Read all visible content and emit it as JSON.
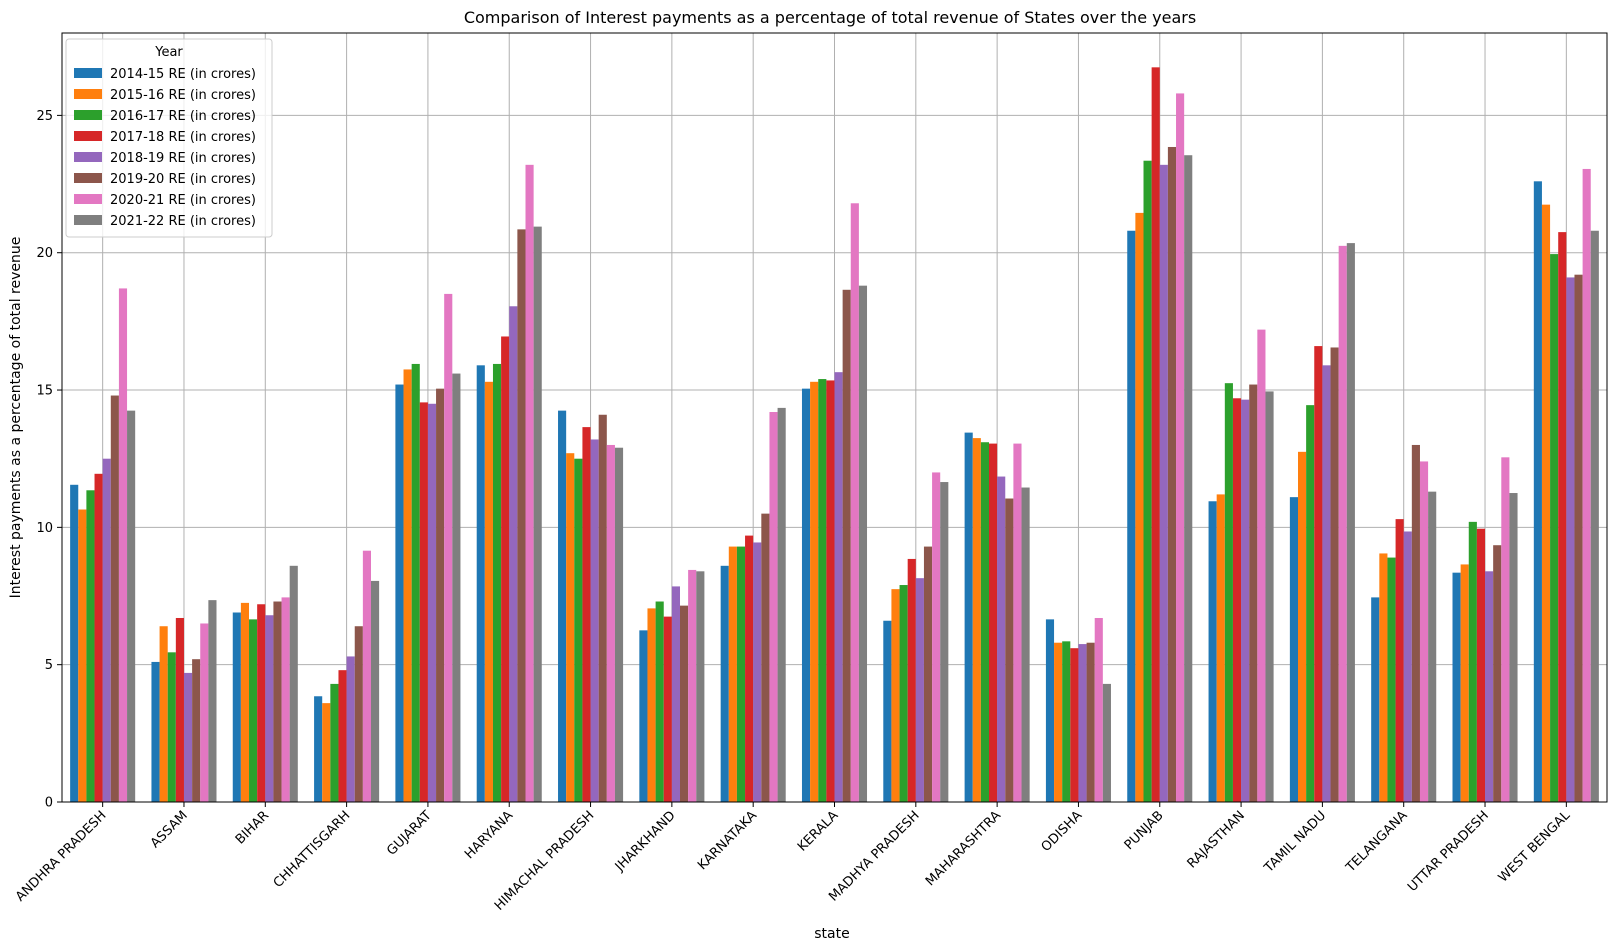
{
  "chart_data": {
    "type": "bar",
    "title": "Comparison of Interest payments as a percentage of total revenue of States over the years",
    "xlabel": "state",
    "ylabel": "Interest payments as a percentage of total revenue",
    "ylim": [
      0,
      28
    ],
    "yticks": [
      0,
      5,
      10,
      15,
      20,
      25
    ],
    "grid": true,
    "legend_title": "Year",
    "legend_position": "top-left",
    "categories": [
      "ANDHRA PRADESH",
      "ASSAM",
      "BIHAR",
      "CHHATTISGARH",
      "GUJARAT",
      "HARYANA",
      "HIMACHAL PRADESH",
      "JHARKHAND",
      "KARNATAKA",
      "KERALA",
      "MADHYA PRADESH",
      "MAHARASHTRA",
      "ODISHA",
      "PUNJAB",
      "RAJASTHAN",
      "TAMIL NADU",
      "TELANGANA",
      "UTTAR PRADESH",
      "WEST BENGAL"
    ],
    "series": [
      {
        "name": "2014-15 RE (in crores)",
        "color": "#1f77b4",
        "values": [
          11.55,
          5.1,
          6.9,
          3.85,
          15.2,
          15.9,
          14.25,
          6.25,
          8.6,
          15.05,
          6.6,
          13.45,
          6.65,
          20.8,
          10.95,
          11.1,
          7.45,
          8.35,
          22.6
        ]
      },
      {
        "name": "2015-16 RE (in crores)",
        "color": "#ff7f0e",
        "values": [
          10.65,
          6.4,
          7.25,
          3.6,
          15.75,
          15.3,
          12.7,
          7.05,
          9.3,
          15.3,
          7.75,
          13.25,
          5.8,
          21.45,
          11.2,
          12.75,
          9.05,
          8.65,
          21.75
        ]
      },
      {
        "name": "2016-17 RE (in crores)",
        "color": "#2ca02c",
        "values": [
          11.35,
          5.45,
          6.65,
          4.3,
          15.95,
          15.95,
          12.5,
          7.3,
          9.3,
          15.4,
          7.9,
          13.1,
          5.85,
          23.35,
          15.25,
          14.45,
          8.9,
          10.2,
          19.95
        ]
      },
      {
        "name": "2017-18 RE (in crores)",
        "color": "#d62728",
        "values": [
          11.95,
          6.7,
          7.2,
          4.8,
          14.55,
          16.95,
          13.65,
          6.75,
          9.7,
          15.35,
          8.85,
          13.05,
          5.6,
          26.75,
          14.7,
          16.6,
          10.3,
          9.95,
          20.75
        ]
      },
      {
        "name": "2018-19 RE (in crores)",
        "color": "#9467bd",
        "values": [
          12.5,
          4.7,
          6.8,
          5.3,
          14.5,
          18.05,
          13.2,
          7.85,
          9.45,
          15.65,
          8.15,
          11.85,
          5.75,
          23.2,
          14.65,
          15.9,
          9.85,
          8.4,
          19.1
        ]
      },
      {
        "name": "2019-20 RE (in crores)",
        "color": "#8c564b",
        "values": [
          14.8,
          5.2,
          7.3,
          6.4,
          15.05,
          20.85,
          14.1,
          7.15,
          10.5,
          18.65,
          9.3,
          11.05,
          5.8,
          23.85,
          15.2,
          16.55,
          13.0,
          9.35,
          19.2
        ]
      },
      {
        "name": "2020-21 RE (in crores)",
        "color": "#e377c2",
        "values": [
          18.7,
          6.5,
          7.45,
          9.15,
          18.5,
          23.2,
          13.0,
          8.45,
          14.2,
          21.8,
          12.0,
          13.05,
          6.7,
          25.8,
          17.2,
          20.25,
          12.4,
          12.55,
          23.05
        ]
      },
      {
        "name": "2021-22 RE (in crores)",
        "color": "#7f7f7f",
        "values": [
          14.25,
          7.35,
          8.6,
          8.05,
          15.6,
          20.95,
          12.9,
          8.4,
          14.35,
          18.8,
          11.65,
          11.45,
          4.3,
          23.55,
          14.95,
          20.35,
          11.3,
          11.25,
          20.8
        ]
      }
    ]
  }
}
